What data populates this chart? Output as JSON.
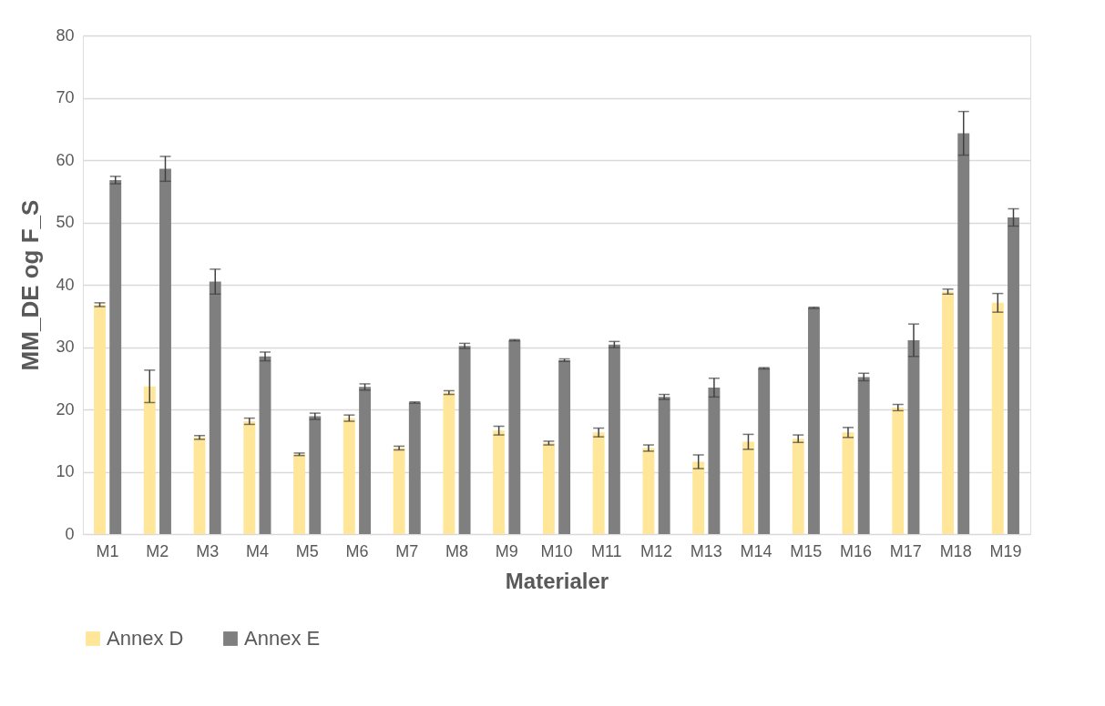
{
  "chart_data": {
    "type": "bar",
    "xlabel": "Materialer",
    "ylabel": "MM_DE og F_S",
    "categories": [
      "M1",
      "M2",
      "M3",
      "M4",
      "M5",
      "M6",
      "M7",
      "M8",
      "M9",
      "M10",
      "M11",
      "M12",
      "M13",
      "M14",
      "M15",
      "M16",
      "M17",
      "M18",
      "M19"
    ],
    "series": [
      {
        "name": "Annex D",
        "color": "#ffe699",
        "values": [
          36.8,
          23.7,
          15.5,
          18.1,
          12.8,
          18.6,
          13.8,
          22.7,
          16.6,
          14.6,
          16.3,
          13.8,
          11.6,
          14.8,
          15.3,
          16.3,
          20.3,
          38.9,
          37.1
        ],
        "errors": [
          0.3,
          2.6,
          0.3,
          0.5,
          0.2,
          0.5,
          0.3,
          0.3,
          0.7,
          0.3,
          0.7,
          0.5,
          1.1,
          1.2,
          0.6,
          0.8,
          0.5,
          0.4,
          1.5
        ]
      },
      {
        "name": "Annex E",
        "color": "#7f7f7f",
        "values": [
          56.8,
          58.6,
          40.5,
          28.5,
          18.9,
          23.6,
          21.1,
          30.2,
          31.1,
          27.9,
          30.4,
          22.0,
          23.5,
          26.6,
          36.3,
          25.2,
          31.1,
          64.3,
          50.8
        ],
        "errors": [
          0.6,
          2.0,
          2.0,
          0.7,
          0.5,
          0.5,
          0.1,
          0.4,
          0.1,
          0.2,
          0.5,
          0.4,
          1.5,
          0.1,
          0.1,
          0.6,
          2.6,
          3.5,
          1.4
        ]
      }
    ],
    "ylim": [
      0,
      80
    ],
    "yticks": [
      0,
      10,
      20,
      30,
      40,
      50,
      60,
      70,
      80
    ],
    "grid": "y",
    "legend": "bottom"
  }
}
